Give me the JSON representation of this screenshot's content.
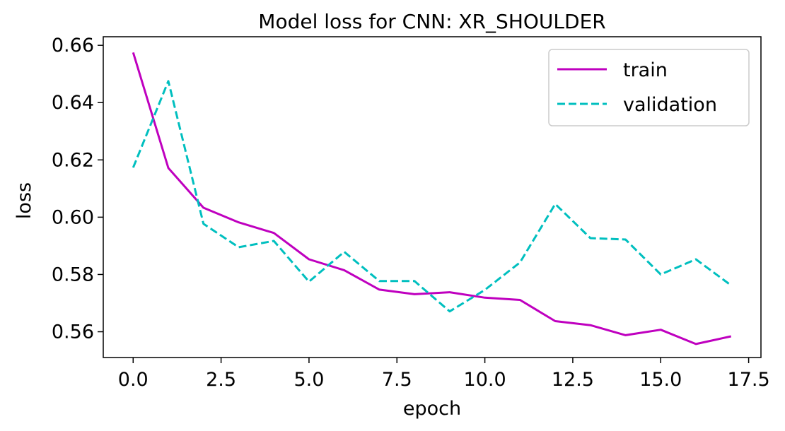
{
  "chart_data": {
    "type": "line",
    "title": "Model loss for CNN: XR_SHOULDER",
    "xlabel": "epoch",
    "ylabel": "loss",
    "xlim": [
      -0.85,
      17.85
    ],
    "ylim": [
      0.551,
      0.663
    ],
    "xticks": [
      0.0,
      2.5,
      5.0,
      7.5,
      10.0,
      12.5,
      15.0,
      17.5
    ],
    "xtick_labels": [
      "0.0",
      "2.5",
      "5.0",
      "7.5",
      "10.0",
      "12.5",
      "15.0",
      "17.5"
    ],
    "yticks": [
      0.56,
      0.58,
      0.6,
      0.62,
      0.64,
      0.66
    ],
    "ytick_labels": [
      "0.56",
      "0.58",
      "0.60",
      "0.62",
      "0.64",
      "0.66"
    ],
    "grid": false,
    "legend_position": "upper right",
    "x": [
      0,
      1,
      2,
      3,
      4,
      5,
      6,
      7,
      8,
      9,
      10,
      11,
      12,
      13,
      14,
      15,
      16,
      17
    ],
    "series": [
      {
        "name": "train",
        "color": "#bf00bf",
        "style": "solid",
        "values": [
          0.6575,
          0.6172,
          0.6033,
          0.5982,
          0.5945,
          0.5853,
          0.5815,
          0.5747,
          0.5731,
          0.5738,
          0.5719,
          0.5711,
          0.5637,
          0.5623,
          0.5588,
          0.5607,
          0.5557,
          0.5584
        ]
      },
      {
        "name": "validation",
        "color": "#00bfbf",
        "style": "dashed",
        "values": [
          0.6173,
          0.6475,
          0.5977,
          0.5895,
          0.5917,
          0.5775,
          0.5879,
          0.5777,
          0.5777,
          0.5671,
          0.5746,
          0.5842,
          0.6046,
          0.5927,
          0.5922,
          0.58,
          0.5853,
          0.5762
        ]
      }
    ]
  }
}
